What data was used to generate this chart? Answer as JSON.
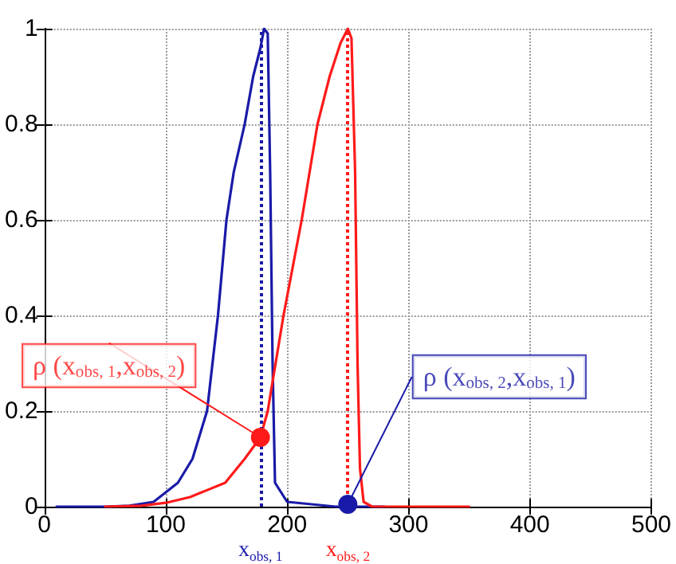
{
  "chart_data": {
    "type": "line",
    "xlim": [
      0,
      500
    ],
    "xticks": [
      0,
      100,
      200,
      300,
      400,
      500
    ],
    "ylim": [
      0,
      1
    ],
    "yticks": [
      0,
      0.2,
      0.4,
      0.6,
      0.8,
      1
    ],
    "grid": true,
    "marker": "none",
    "line_style": "solid",
    "series": [
      {
        "color": "#1a1aa8",
        "x": [
          10,
          30,
          50,
          70,
          90,
          100,
          110,
          122,
          134,
          143,
          150,
          156,
          165,
          172,
          178,
          181,
          184,
          186,
          188,
          190,
          200,
          240,
          280
        ],
        "values": [
          0,
          0,
          0,
          0.002,
          0.01,
          0.03,
          0.05,
          0.1,
          0.2,
          0.4,
          0.6,
          0.7,
          0.8,
          0.9,
          0.96,
          1,
          0.99,
          0.7,
          0.3,
          0.05,
          0.01,
          0,
          0
        ]
      },
      {
        "color": "#ff1a1a",
        "x": [
          50,
          80,
          100,
          120,
          149,
          165,
          178,
          184,
          197,
          212,
          225,
          235,
          244,
          250,
          253,
          256,
          258,
          260,
          263,
          270,
          350
        ],
        "values": [
          0,
          0.002,
          0.008,
          0.02,
          0.05,
          0.1,
          0.145,
          0.2,
          0.4,
          0.6,
          0.8,
          0.9,
          0.97,
          1,
          0.98,
          0.7,
          0.3,
          0.08,
          0.01,
          0,
          0
        ]
      },
      {
        "type": "scatter",
        "marker": "circle",
        "color": "#ff1a1a",
        "x": [
          178
        ],
        "values": [
          0.145
        ]
      },
      {
        "type": "scatter",
        "marker": "circle",
        "color": "#1a1aa8",
        "x": [
          250
        ],
        "values": [
          0.005
        ]
      }
    ],
    "ref_lines": [
      {
        "axis": "x",
        "value": 178,
        "label": "x$_{obs, 1}$",
        "color": "#1a1aa8",
        "line_style": "dotted"
      },
      {
        "axis": "x",
        "value": 250,
        "label": "x$_{obs, 2}$",
        "color": "#ff1a1a",
        "line_style": "dotted"
      }
    ],
    "annotations": [
      {
        "text": "ρ (x$_{obs, 1}$,x$_{obs, 2}$)",
        "x": 178,
        "y": 0.145
      },
      {
        "text": "ρ (x$_{obs, 2}$,x$_{obs, 1}$)",
        "x": 250,
        "y": 0.005
      }
    ]
  }
}
